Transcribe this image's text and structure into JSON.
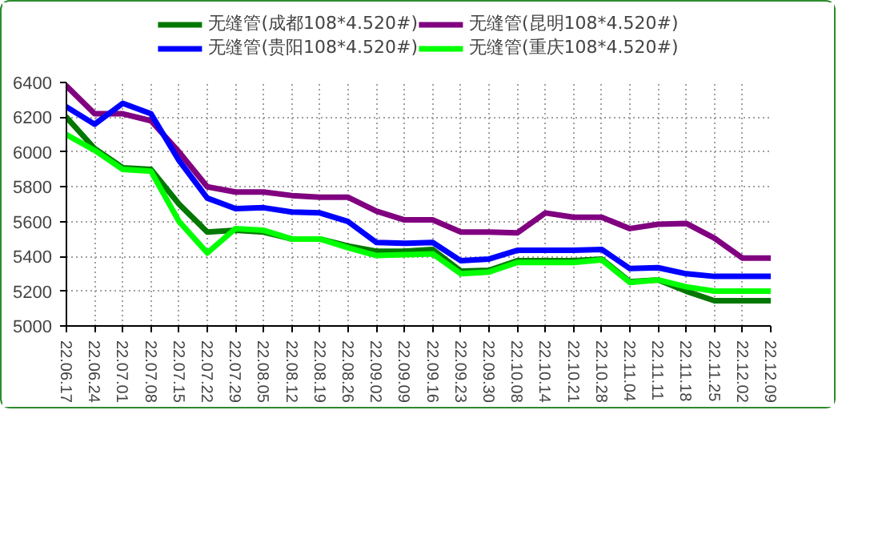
{
  "chart_data": {
    "type": "line",
    "categories": [
      "22.06.17",
      "22.06.24",
      "22.07.01",
      "22.07.08",
      "22.07.15",
      "22.07.22",
      "22.07.29",
      "22.08.05",
      "22.08.12",
      "22.08.19",
      "22.08.26",
      "22.09.02",
      "22.09.09",
      "22.09.16",
      "22.09.23",
      "22.09.30",
      "22.10.08",
      "22.10.14",
      "22.10.21",
      "22.10.28",
      "22.11.04",
      "22.11.11",
      "22.11.18",
      "22.11.25",
      "22.12.02",
      "22.12.09"
    ],
    "series": [
      {
        "name": "无缝管(成都108*4.520#)",
        "color": "#007800",
        "values": [
          6200,
          6020,
          5910,
          5900,
          5700,
          5540,
          5550,
          5540,
          5500,
          5500,
          5460,
          5430,
          5430,
          5440,
          5315,
          5320,
          5375,
          5375,
          5375,
          5385,
          5255,
          5265,
          5200,
          5145,
          5145,
          5145
        ]
      },
      {
        "name": "无缝管(昆明108*4.520#)",
        "color": "#800080",
        "values": [
          6380,
          6220,
          6220,
          6180,
          6000,
          5800,
          5770,
          5770,
          5750,
          5740,
          5740,
          5660,
          5610,
          5610,
          5540,
          5540,
          5535,
          5650,
          5625,
          5625,
          5560,
          5585,
          5590,
          5505,
          5390,
          5390
        ]
      },
      {
        "name": "无缝管(贵阳108*4.520#)",
        "color": "#0000ff",
        "values": [
          6260,
          6160,
          6280,
          6220,
          5950,
          5735,
          5675,
          5680,
          5655,
          5650,
          5600,
          5480,
          5475,
          5480,
          5375,
          5385,
          5435,
          5435,
          5435,
          5440,
          5330,
          5335,
          5300,
          5285,
          5285,
          5285
        ]
      },
      {
        "name": "无缝管(重庆108*4.520#)",
        "color": "#00ff00",
        "values": [
          6100,
          6010,
          5900,
          5890,
          5600,
          5420,
          5560,
          5550,
          5500,
          5500,
          5450,
          5405,
          5410,
          5415,
          5300,
          5310,
          5365,
          5365,
          5365,
          5380,
          5250,
          5265,
          5225,
          5200,
          5200,
          5200
        ]
      }
    ],
    "ylim": [
      5000,
      6400
    ],
    "yticks": [
      5000,
      5200,
      5400,
      5600,
      5800,
      6000,
      6200,
      6400
    ],
    "grid": true,
    "legend": "top",
    "line_style": "solid",
    "marker": "none"
  }
}
